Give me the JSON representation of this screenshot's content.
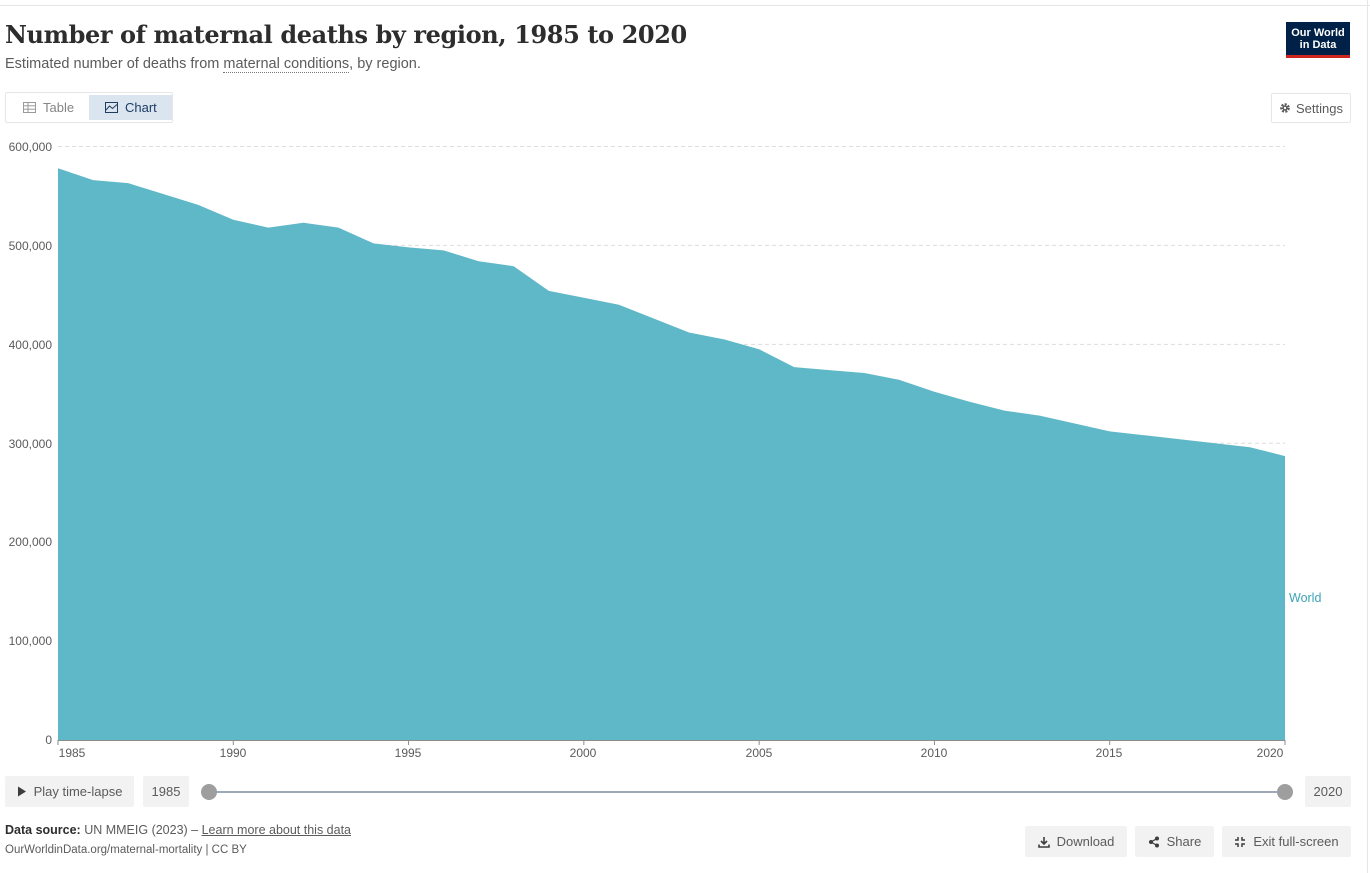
{
  "header": {
    "title": "Number of maternal deaths by region, 1985 to 2020",
    "subtitle_prefix": "Estimated number of deaths from ",
    "subtitle_link": "maternal conditions",
    "subtitle_suffix": ", by region.",
    "logo_line1": "Our World",
    "logo_line2": "in Data"
  },
  "tabs": {
    "table_label": "Table",
    "chart_label": "Chart",
    "active": "chart"
  },
  "settings_label": "Settings",
  "colors": {
    "area": "#5fb8c7",
    "series_label": "#3aa5b5",
    "logo_bg": "#002147",
    "logo_accent": "#ce261e"
  },
  "chart_data": {
    "type": "area",
    "x": [
      1985,
      1986,
      1987,
      1988,
      1989,
      1990,
      1991,
      1992,
      1993,
      1994,
      1995,
      1996,
      1997,
      1998,
      1999,
      2000,
      2001,
      2002,
      2003,
      2004,
      2005,
      2006,
      2007,
      2008,
      2009,
      2010,
      2011,
      2012,
      2013,
      2014,
      2015,
      2016,
      2017,
      2018,
      2019,
      2020
    ],
    "series": [
      {
        "name": "World",
        "color": "#5fb8c7",
        "values": [
          578000,
          566000,
          563000,
          552000,
          541000,
          526000,
          518000,
          523000,
          518000,
          502000,
          498000,
          495000,
          484000,
          479000,
          454000,
          447000,
          440000,
          426000,
          412000,
          405000,
          395000,
          377000,
          374000,
          371000,
          364000,
          352000,
          342000,
          333000,
          328000,
          320000,
          312000,
          308000,
          304000,
          300000,
          296000,
          287000
        ]
      }
    ],
    "yticks": [
      0,
      100000,
      200000,
      300000,
      400000,
      500000,
      600000
    ],
    "ytick_labels": [
      "0",
      "100,000",
      "200,000",
      "300,000",
      "400,000",
      "500,000",
      "600,000"
    ],
    "xticks": [
      1985,
      1990,
      1995,
      2000,
      2005,
      2010,
      2015,
      2020
    ],
    "xtick_labels": [
      "1985",
      "1990",
      "1995",
      "2000",
      "2005",
      "2010",
      "2015",
      "2020"
    ],
    "ylim": [
      0,
      600000
    ],
    "xlim": [
      1985,
      2020
    ],
    "grid": "horizontal-dashed",
    "legend": "inline-right"
  },
  "timeline": {
    "play_label": "Play time-lapse",
    "start_year": "1985",
    "end_year": "2020",
    "start_value": 1985,
    "end_value": 2020
  },
  "footer": {
    "source_label": "Data source:",
    "source_text": " UN MMEIG (2023) – ",
    "source_link": "Learn more about this data",
    "url": "OurWorldinData.org/maternal-mortality | CC BY",
    "download_label": "Download",
    "share_label": "Share",
    "exit_label": "Exit full-screen"
  }
}
